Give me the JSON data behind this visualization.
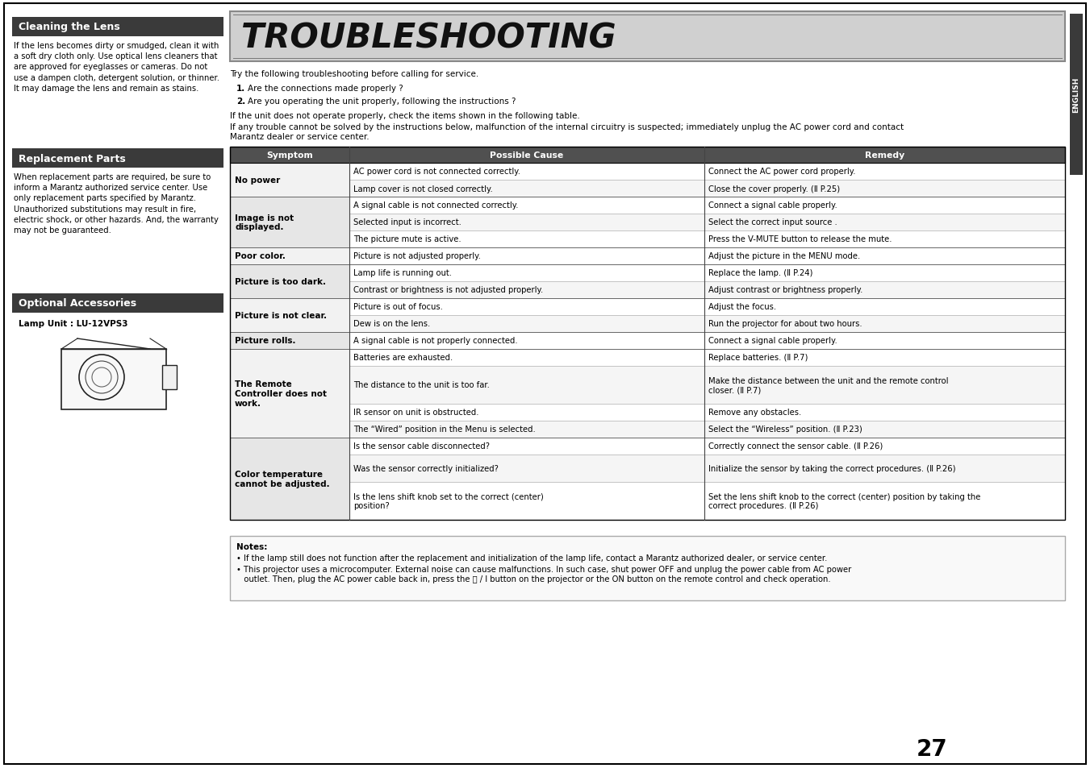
{
  "page_bg": "#ffffff",
  "sidebar_color": "#3a3a3a",
  "section_headers": [
    "Cleaning the Lens",
    "Replacement Parts",
    "Optional Accessories"
  ],
  "cleaning_text": "If the lens becomes dirty or smudged, clean it with\na soft dry cloth only. Use optical lens cleaners that\nare approved for eyeglasses or cameras. Do not\nuse a dampen cloth, detergent solution, or thinner.\nIt may damage the lens and remain as stains.",
  "replacement_text": "When replacement parts are required, be sure to\ninform a Marantz authorized service center. Use\nonly replacement parts specified by Marantz.\nUnauthorized substitutions may result in fire,\nelectric shock, or other hazards. And, the warranty\nmay not be guaranteed.",
  "optional_text": "Lamp Unit : LU-12VPS3",
  "title": "TROUBLESHOOTING",
  "intro_text": "Try the following troubleshooting before calling for service.",
  "step1": "Are the connections made properly ?",
  "step2": "Are you operating the unit properly, following the instructions ?",
  "para1": "If the unit does not operate properly, check the items shown in the following table.",
  "para2": "If any trouble cannot be solved by the instructions below, malfunction of the internal circuitry is suspected; immediately unplug the AC power cord and contact\nMarantz dealer or service center.",
  "table_header_bg": "#505050",
  "table_col_headers": [
    "Symptom",
    "Possible Cause",
    "Remedy"
  ],
  "table_rows": [
    [
      "No power",
      "AC power cord is not connected correctly.",
      "Connect the AC power cord properly."
    ],
    [
      "",
      "Lamp cover is not closed correctly.",
      "Close the cover properly. (Ⅱ P.25)"
    ],
    [
      "Image is not\ndisplayed.",
      "A signal cable is not connected correctly.",
      "Connect a signal cable properly."
    ],
    [
      "",
      "Selected input is incorrect.",
      "Select the correct input source ."
    ],
    [
      "",
      "The picture mute is active.",
      "Press the V-MUTE button to release the mute."
    ],
    [
      "Poor color.",
      "Picture is not adjusted properly.",
      "Adjust the picture in the MENU mode."
    ],
    [
      "Picture is too dark.",
      "Lamp life is running out.",
      "Replace the lamp. (Ⅱ P.24)"
    ],
    [
      "",
      "Contrast or brightness is not adjusted properly.",
      "Adjust contrast or brightness properly."
    ],
    [
      "Picture is not clear.",
      "Picture is out of focus.",
      "Adjust the focus."
    ],
    [
      "",
      "Dew is on the lens.",
      "Run the projector for about two hours."
    ],
    [
      "Picture rolls.",
      "A signal cable is not properly connected.",
      "Connect a signal cable properly."
    ],
    [
      "The Remote\nController does not\nwork.",
      "Batteries are exhausted.",
      "Replace batteries. (Ⅱ P.7)"
    ],
    [
      "",
      "The distance to the unit is too far.",
      "Make the distance between the unit and the remote control\ncloser. (Ⅱ P.7)"
    ],
    [
      "",
      "IR sensor on unit is obstructed.",
      "Remove any obstacles."
    ],
    [
      "",
      "The “Wired” position in the Menu is selected.",
      "Select the “Wireless” position. (Ⅱ P.23)"
    ],
    [
      "Color temperature\ncannot be adjusted.",
      "Is the sensor cable disconnected?",
      "Correctly connect the sensor cable. (Ⅱ P.26)"
    ],
    [
      "",
      "Was the sensor correctly initialized?",
      "Initialize the sensor by taking the correct procedures. (Ⅱ P.26)"
    ],
    [
      "",
      "Is the lens shift knob set to the correct (center)\nposition?",
      "Set the lens shift knob to the correct (center) position by taking the\ncorrect procedures. (Ⅱ P.26)"
    ]
  ],
  "notes_bold": "Notes:",
  "notes_line1": "• If the lamp still does not function after the replacement and initialization of the lamp life, contact a Marantz authorized dealer, or service center.",
  "notes_line2a": "• This projector uses a microcomputer. External noise can cause malfunctions. In such case, shut power OFF and unplug the power cable from AC power",
  "notes_line2b": "   outlet. Then, plug the AC power cable back in, press the ⏻ / I button on the projector or the ON button on the remote control and check operation.",
  "page_num": "27",
  "english_sidebar": "ENGLISH"
}
